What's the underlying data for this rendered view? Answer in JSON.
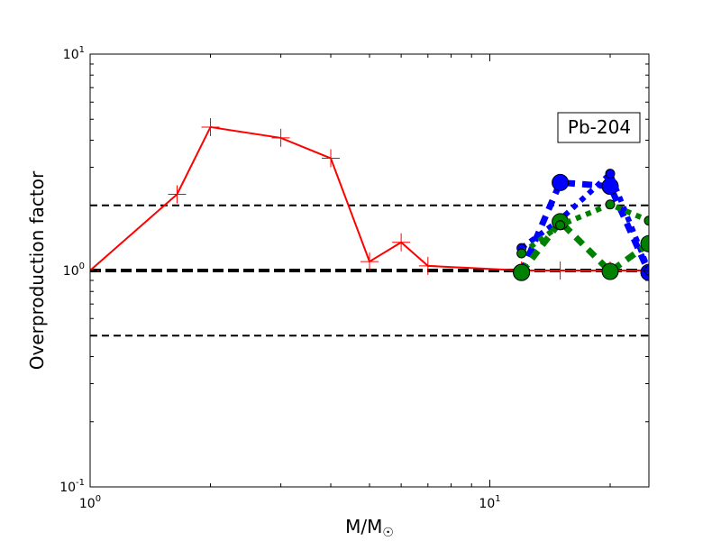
{
  "chart_data": {
    "type": "line",
    "xscale": "log",
    "yscale": "log",
    "xlim": [
      1,
      25
    ],
    "ylim": [
      0.1,
      10
    ],
    "xlabel": "M/M☉",
    "ylabel": "Overproduction factor",
    "x_ticks": [
      {
        "value": 1,
        "base": "10",
        "exp": "0"
      },
      {
        "value": 10,
        "base": "10",
        "exp": "1"
      }
    ],
    "y_ticks": [
      {
        "value": 0.1,
        "base": "10",
        "exp": "-1"
      },
      {
        "value": 1,
        "base": "10",
        "exp": "0"
      },
      {
        "value": 10,
        "base": "10",
        "exp": "1"
      }
    ],
    "annotation": "Pb-204",
    "grid": false,
    "reference_lines": [
      {
        "y": 2.0,
        "style": "dashed",
        "weight": "thin"
      },
      {
        "y": 1.0,
        "style": "dashed",
        "weight": "thick"
      },
      {
        "y": 0.5,
        "style": "dashed",
        "weight": "thin"
      }
    ],
    "series": [
      {
        "color": "#ff0000",
        "line": "solid",
        "marker": "plus",
        "x": [
          1,
          1.65,
          2,
          3,
          4,
          5,
          6,
          7,
          12,
          15,
          20,
          25
        ],
        "y": [
          1.0,
          2.25,
          4.6,
          4.1,
          3.3,
          1.1,
          1.35,
          1.05,
          1.0,
          1.0,
          1.0,
          1.0
        ]
      },
      {
        "color": "#0000ff",
        "line": "dashed",
        "marker": "circle-large",
        "x": [
          12,
          15,
          20,
          25
        ],
        "y": [
          0.98,
          2.55,
          2.45,
          0.98
        ]
      },
      {
        "color": "#0000ff",
        "line": "dotted",
        "marker": "circle-small",
        "x": [
          12,
          15,
          20,
          25
        ],
        "y": [
          1.27,
          1.72,
          2.8,
          1.0
        ]
      },
      {
        "color": "#008000",
        "line": "dashed",
        "marker": "circle-large",
        "x": [
          12,
          15,
          20,
          25
        ],
        "y": [
          0.98,
          1.68,
          0.99,
          1.33
        ]
      },
      {
        "color": "#008000",
        "line": "dotted",
        "marker": "circle-small",
        "x": [
          12,
          15,
          20,
          25
        ],
        "y": [
          1.2,
          1.62,
          2.02,
          1.7
        ]
      }
    ]
  }
}
